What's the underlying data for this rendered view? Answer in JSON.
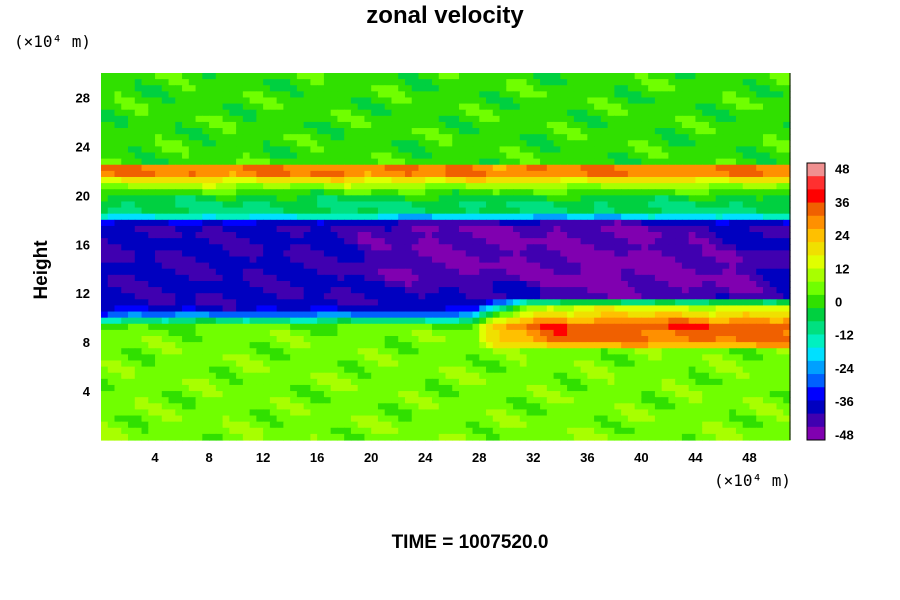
{
  "chart_data": {
    "type": "heatmap",
    "title": "zonal velocity",
    "ylabel": "Height",
    "xlabel": "",
    "x_unit": "(×10⁴ m)",
    "y_unit": "(×10⁴ m)",
    "xlim": [
      0,
      51
    ],
    "ylim": [
      0,
      30
    ],
    "x_ticks": [
      4,
      8,
      12,
      16,
      20,
      24,
      28,
      32,
      36,
      40,
      44,
      48
    ],
    "y_ticks": [
      4,
      8,
      12,
      16,
      20,
      24,
      28
    ],
    "colorbar": {
      "vmin": -50,
      "vmax": 50,
      "ticks": [
        48,
        36,
        24,
        12,
        0,
        -12,
        -24,
        -36,
        -48
      ],
      "colors": [
        "#f09090",
        "#ff3030",
        "#ff0000",
        "#f06000",
        "#ff9000",
        "#ffc000",
        "#f0e000",
        "#e0ff00",
        "#a8ff00",
        "#70ff00",
        "#30e000",
        "#00d040",
        "#00e080",
        "#00f0c0",
        "#00e0ff",
        "#00a0ff",
        "#0060ff",
        "#0000ff",
        "#0000c0",
        "#4000b0",
        "#8000b0"
      ]
    },
    "features": [
      {
        "description": "strong positive jet",
        "x_range": [
          0,
          51
        ],
        "y_range": [
          19.0,
          21.5
        ],
        "value": 30
      },
      {
        "description": "easterly band",
        "x_range": [
          0,
          51
        ],
        "y_range": [
          12.0,
          19.0
        ],
        "value": -40
      },
      {
        "description": "strong negative core",
        "x_range": [
          24,
          40
        ],
        "y_range": [
          14.0,
          17.0
        ],
        "value": -50
      },
      {
        "description": "strong negative core",
        "x_range": [
          36,
          46
        ],
        "y_range": [
          12.5,
          14.5
        ],
        "value": -50
      },
      {
        "description": "strong positive jet",
        "x_range": [
          34,
          51
        ],
        "y_range": [
          8.5,
          10.5
        ],
        "value": 45
      },
      {
        "description": "near-zero lower region",
        "x_range": [
          0,
          51
        ],
        "y_range": [
          0,
          8
        ],
        "value": 5
      }
    ],
    "time_label": "TIME = 1007520.0"
  }
}
